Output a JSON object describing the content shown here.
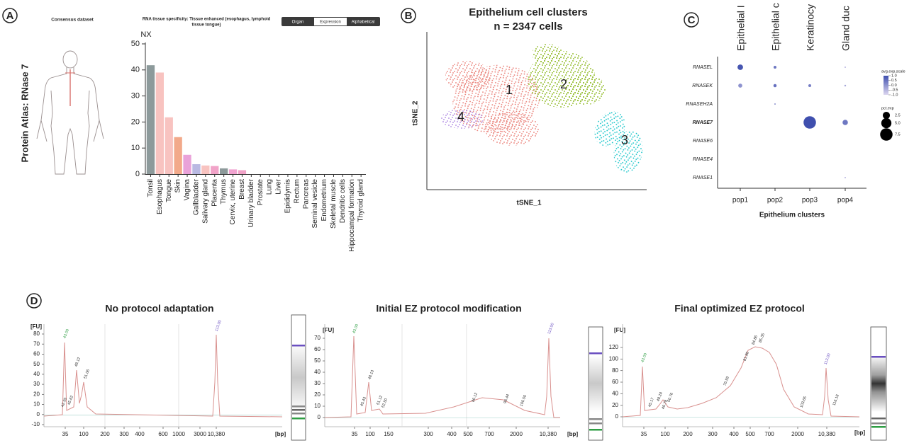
{
  "figure": {
    "panel_labels": [
      "A",
      "B",
      "C",
      "D"
    ]
  },
  "panel_a": {
    "side_title": "Protein Atlas: RNase 7",
    "dataset_title": "Consensus dataset",
    "specificity_title": [
      "RNA tissue specificity: Tissue enhanced (esophagus, lymphoid",
      "tissue tongue)"
    ],
    "tabs": [
      "Organ",
      "Expression",
      "Alphabetical"
    ]
  },
  "chart_data": [
    {
      "type": "bar",
      "y_label": "NX",
      "categories": [
        "Tonsil",
        "Esophagus",
        "Tongue",
        "Skin",
        "Vagina",
        "Gallbladder",
        "Salivary gland",
        "Placenta",
        "Thymus",
        "Cervix, uterine",
        "Breast",
        "Urinary bladder",
        "Prostate",
        "Lung",
        "Liver",
        "Epididymis",
        "Rectum",
        "Pancreas",
        "Seminal vesicle",
        "Endometrium",
        "Skeletal muscle",
        "Dendritic cells",
        "Hippocampal formation",
        "Thyroid gland"
      ],
      "values": [
        41.8,
        39,
        21.8,
        14.2,
        7.4,
        3.8,
        3.3,
        3.1,
        2.2,
        1.8,
        1.5,
        0,
        0,
        0,
        0,
        0,
        0,
        0,
        0,
        0,
        0,
        0,
        0,
        0
      ],
      "colors": [
        "#8d9a9b",
        "#f8c3c0",
        "#f8c3c0",
        "#f2a98a",
        "#e9a2d9",
        "#b9b9e2",
        "#f8c3c0",
        "#f1a3c8",
        "#8d9a9b",
        "#f1a3d0",
        "#f1a3c8",
        "#f8c3c0",
        "#f8c3c0",
        "#f8c3c0",
        "#f8c3c0",
        "#f8c3c0",
        "#f8c3c0",
        "#f8c3c0",
        "#f8c3c0",
        "#f8c3c0",
        "#f8c3c0",
        "#f8c3c0",
        "#f8c3c0",
        "#f8c3c0"
      ],
      "ylim": [
        0,
        50
      ],
      "yticks": [
        0,
        10,
        20,
        30,
        40,
        50
      ]
    },
    {
      "type": "scatter",
      "title": "Epithelium cell clusters",
      "subtitle": "n = 2347 cells",
      "x_label": "tSNE_1",
      "y_label": "tSNE_2",
      "clusters": [
        {
          "name": "1",
          "color": "#e8766d"
        },
        {
          "name": "2",
          "color": "#7cae00"
        },
        {
          "name": "3",
          "color": "#00bfc4"
        },
        {
          "name": "4",
          "color": "#a77ce0"
        }
      ]
    },
    {
      "type": "dot",
      "column_headers": [
        "Epithelial I",
        "Epithelial c",
        "Keratinocy",
        "Gland duc"
      ],
      "categories": [
        "pop1",
        "pop2",
        "pop3",
        "pop4"
      ],
      "x_label": "Epithelium clusters",
      "rows": [
        "RNASEL",
        "RNASEK",
        "RNASEH2A",
        "RNASE7",
        "RNASE6",
        "RNASE4",
        "RNASE1"
      ],
      "pct_exp": [
        [
          1.5,
          0.4,
          null,
          0.1
        ],
        [
          0.8,
          0.5,
          0.4,
          0.15
        ],
        [
          null,
          0.1,
          null,
          null
        ],
        [
          null,
          null,
          7.5,
          1.4
        ],
        [
          null,
          null,
          null,
          null
        ],
        [
          null,
          null,
          null,
          null
        ],
        [
          null,
          null,
          null,
          0.1
        ]
      ],
      "avg_exp": [
        [
          0.9,
          0.4,
          null,
          -0.5
        ],
        [
          0,
          0.5,
          0.3,
          -0.3
        ],
        [
          null,
          0,
          null,
          null
        ],
        [
          null,
          null,
          1,
          0.4
        ],
        [
          null,
          null,
          null,
          null
        ],
        [
          null,
          null,
          null,
          null
        ],
        [
          null,
          null,
          null,
          -0.5
        ]
      ],
      "color_legend_title": "avg.exp.scale",
      "clim": [
        -1,
        1
      ],
      "colors": [
        "#ddd6f0",
        "#3f4fae"
      ],
      "color_ticks": [
        {
          "value": 1,
          "label": "1.0"
        },
        0.5,
        {
          "value": 0,
          "label": "0.0"
        },
        -0.5,
        {
          "value": -1,
          "label": "-1.0"
        }
      ],
      "size_legend_title": "pct.exp",
      "size_ticks": [
        2.5,
        {
          "value": 5,
          "label": "5.0"
        },
        7.5
      ]
    }
  ],
  "panel_d": {
    "plots": [
      {
        "title": "No protocol adaptation",
        "y_unit": "[FU]",
        "x_unit": "[bp]",
        "ylim": [
          -10,
          80
        ],
        "yticks": [
          -10,
          0,
          10,
          20,
          30,
          40,
          50,
          60,
          70,
          80
        ],
        "x_labels": [
          "35",
          "100",
          "200",
          "300",
          "400",
          "600",
          "1000",
          "3000",
          "10,380"
        ],
        "peak_labels": [
          {
            "text": "43.00",
            "color": "#2f9e44"
          },
          {
            "text": "113.00",
            "color": "#6a4fc0"
          },
          {
            "text": "48.12",
            "color": "#333333"
          },
          {
            "text": "51.06",
            "color": "#333333"
          },
          {
            "text": "42.59",
            "color": "#333333"
          },
          {
            "text": "45.62",
            "color": "#333333"
          }
        ]
      },
      {
        "title": "Initial EZ protocol modification",
        "y_unit": "[FU]",
        "x_unit": "[bp]",
        "ylim": [
          0,
          70
        ],
        "yticks": [
          0,
          10,
          20,
          30,
          40,
          50,
          60,
          70
        ],
        "x_labels": [
          "35",
          "100",
          "150",
          "300",
          "400",
          "500",
          "700",
          "2000",
          "10,380"
        ],
        "peak_labels": [
          {
            "text": "43.00",
            "color": "#2f9e44"
          },
          {
            "text": "113.00",
            "color": "#6a4fc0"
          },
          {
            "text": "48.13",
            "color": "#333333"
          },
          {
            "text": "45.43",
            "color": "#333333"
          },
          {
            "text": "51.12",
            "color": "#333333"
          },
          {
            "text": "52.50",
            "color": "#333333"
          },
          {
            "text": "86.12",
            "color": "#333333"
          },
          {
            "text": "96.44",
            "color": "#333333"
          },
          {
            "text": "100.50",
            "color": "#333333"
          }
        ]
      },
      {
        "title": "Final optimized EZ protocol",
        "y_unit": "[FU]",
        "x_unit": "[bp]",
        "ylim": [
          0,
          120
        ],
        "yticks": [
          0,
          20,
          40,
          60,
          80,
          100,
          120
        ],
        "x_labels": [
          "35",
          "100",
          "200",
          "300",
          "400",
          "500",
          "700",
          "2000",
          "10,380"
        ],
        "peak_labels": [
          {
            "text": "43.00",
            "color": "#2f9e44"
          },
          {
            "text": "113.00",
            "color": "#6a4fc0"
          },
          {
            "text": "116.18",
            "color": "#333333"
          },
          {
            "text": "45.17",
            "color": "#333333"
          },
          {
            "text": "48.24",
            "color": "#333333"
          },
          {
            "text": "49.78",
            "color": "#333333"
          },
          {
            "text": "50.76",
            "color": "#333333"
          },
          {
            "text": "76.59",
            "color": "#333333"
          },
          {
            "text": "81.86",
            "color": "#333333"
          },
          {
            "text": "84.86",
            "color": "#333333"
          },
          {
            "text": "85.35",
            "color": "#333333"
          },
          {
            "text": "103.65",
            "color": "#333333"
          }
        ]
      }
    ]
  }
}
